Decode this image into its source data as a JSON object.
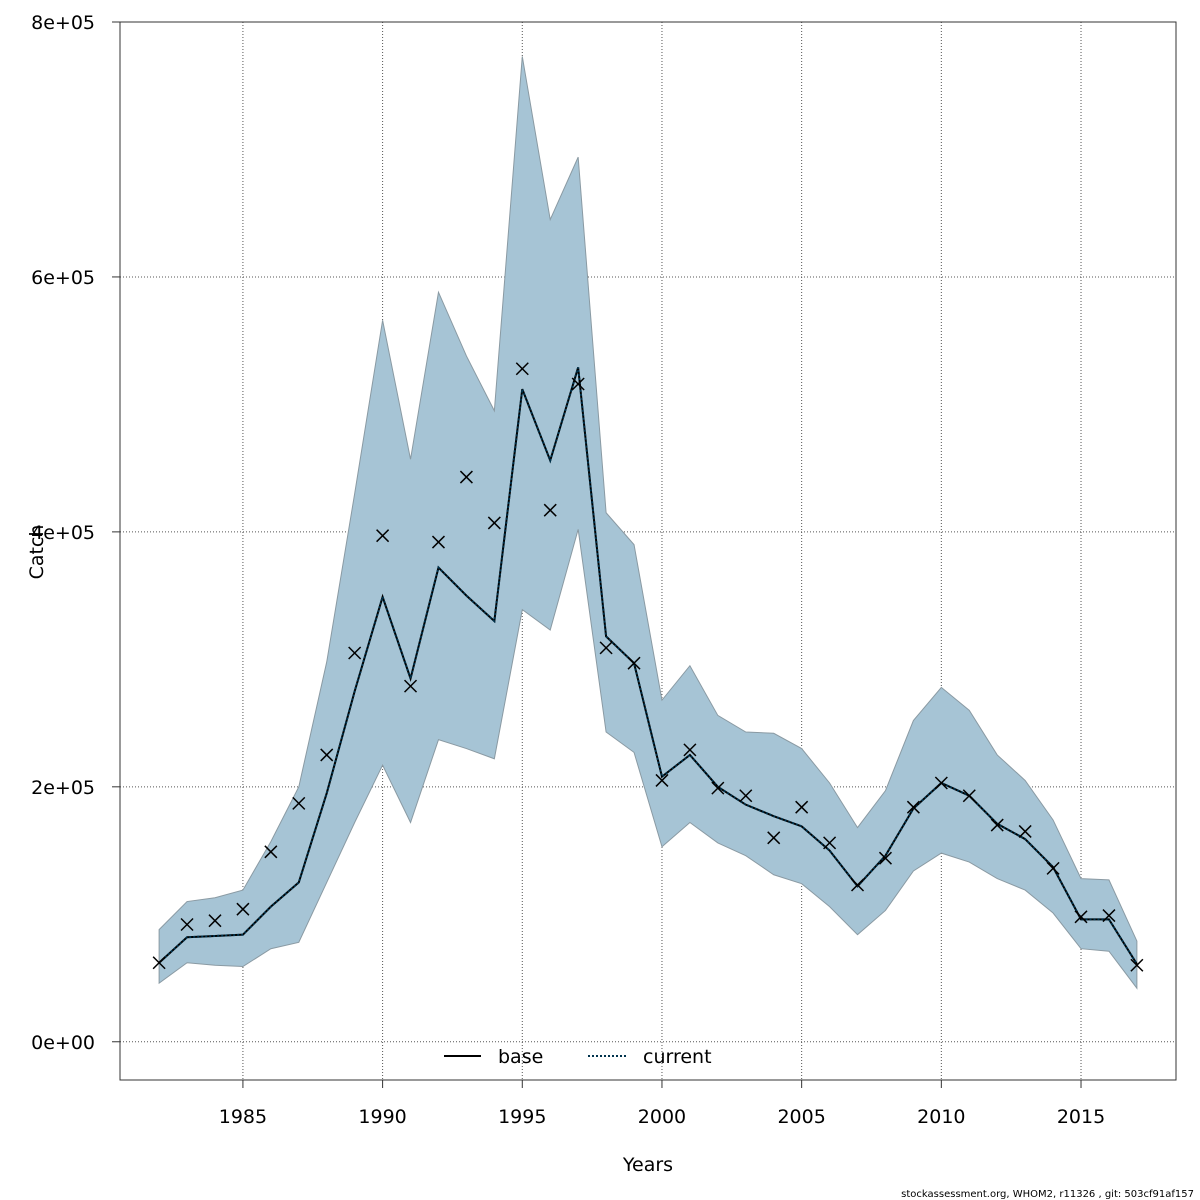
{
  "chart_data": {
    "type": "line",
    "title": "",
    "xlabel": "Years",
    "ylabel": "Catch",
    "xlim": [
      1980.6,
      2018.4
    ],
    "ylim": [
      -30000,
      800000
    ],
    "x_ticks": [
      1985,
      1990,
      1995,
      2000,
      2005,
      2010,
      2015
    ],
    "x_tick_labels": [
      "1985",
      "1990",
      "1995",
      "2000",
      "2005",
      "2010",
      "2015"
    ],
    "y_ticks": [
      0,
      200000,
      400000,
      600000,
      800000
    ],
    "y_tick_labels": [
      "0e+00",
      "2e+05",
      "4e+05",
      "6e+05",
      "8e+05"
    ],
    "grid": true,
    "legend_position": "bottom-center",
    "band_color": "#a6c4d5",
    "band_border_color": "#8a9aa3",
    "current_line_color": "#00334d",
    "years": [
      1982,
      1983,
      1984,
      1985,
      1986,
      1987,
      1988,
      1989,
      1990,
      1991,
      1992,
      1993,
      1994,
      1995,
      1996,
      1997,
      1998,
      1999,
      2000,
      2001,
      2002,
      2003,
      2004,
      2005,
      2006,
      2007,
      2008,
      2009,
      2010,
      2011,
      2012,
      2013,
      2014,
      2015,
      2016,
      2017
    ],
    "band_upper": [
      88000,
      110000,
      113000,
      119000,
      157000,
      200000,
      298000,
      430000,
      566000,
      457000,
      588000,
      538000,
      495000,
      773000,
      645000,
      694000,
      415000,
      390000,
      268000,
      295000,
      256000,
      243000,
      242000,
      230000,
      203000,
      168000,
      197000,
      252000,
      278000,
      260000,
      225000,
      205000,
      174000,
      128000,
      127000,
      79000
    ],
    "band_lower": [
      46000,
      62000,
      60000,
      59000,
      73000,
      78000,
      125000,
      172000,
      217000,
      172000,
      237000,
      230000,
      222000,
      339000,
      323000,
      402000,
      243000,
      227000,
      153000,
      172000,
      156000,
      146000,
      131000,
      124000,
      106000,
      84000,
      103000,
      134000,
      148000,
      141000,
      128000,
      119000,
      101000,
      73000,
      71000,
      42000
    ],
    "series": [
      {
        "name": "base",
        "style": "solid",
        "values": [
          62000,
          82000,
          83000,
          84000,
          106000,
          125000,
          195000,
          275000,
          349000,
          285000,
          372000,
          350000,
          330000,
          512000,
          456000,
          529000,
          318000,
          297000,
          208000,
          225000,
          200000,
          186000,
          177000,
          169000,
          150000,
          122000,
          146000,
          183000,
          203000,
          193000,
          171000,
          159000,
          137000,
          96000,
          96000,
          61000
        ]
      },
      {
        "name": "current",
        "style": "dotted",
        "values": [
          62000,
          82000,
          83000,
          84000,
          106000,
          125000,
          195000,
          275000,
          349000,
          285000,
          372000,
          350000,
          330000,
          512000,
          456000,
          529000,
          318000,
          297000,
          208000,
          225000,
          200000,
          186000,
          177000,
          169000,
          150000,
          122000,
          146000,
          183000,
          203000,
          193000,
          171000,
          159000,
          137000,
          96000,
          96000,
          61000
        ]
      }
    ],
    "observed": [
      62000,
      92000,
      95000,
      104000,
      149000,
      187000,
      225000,
      305000,
      397000,
      279000,
      392000,
      443000,
      407000,
      528000,
      417000,
      516000,
      309000,
      297000,
      205000,
      229000,
      199000,
      193000,
      160000,
      184000,
      156000,
      123000,
      144000,
      184000,
      203000,
      193000,
      170000,
      165000,
      136000,
      98000,
      99000,
      60000
    ],
    "legend": {
      "base_label": "base",
      "current_label": "current"
    }
  },
  "footer": "stockassessment.org, WHOM2, r11326 , git: 503cf91af157"
}
